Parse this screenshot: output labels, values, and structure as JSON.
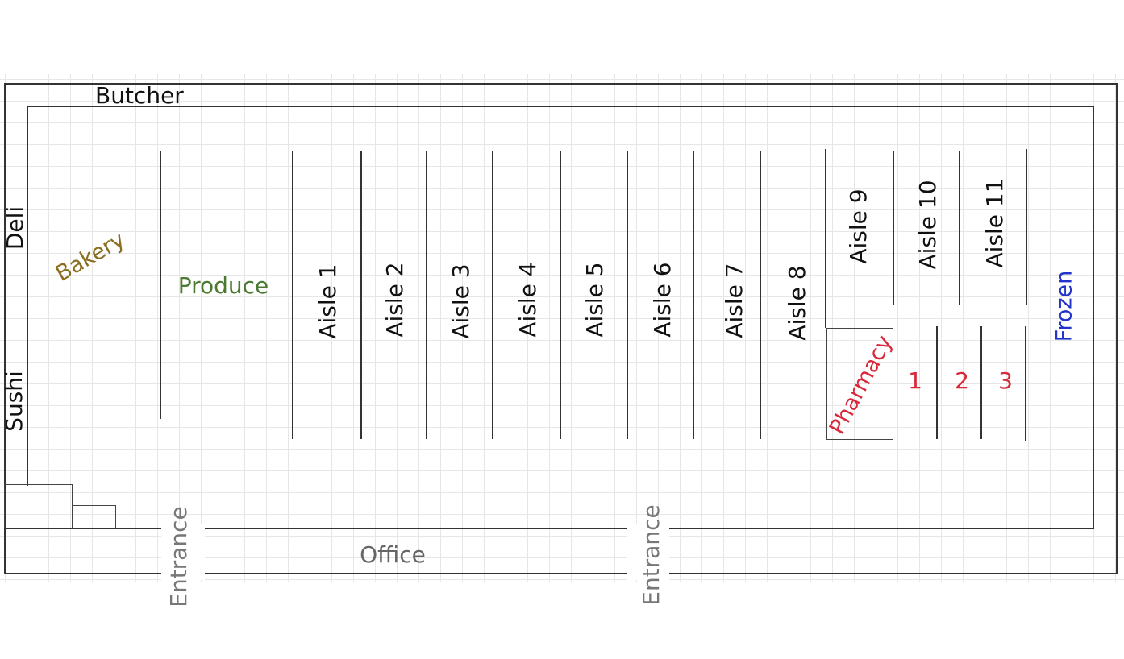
{
  "map": {
    "labels": {
      "butcher": "Butcher",
      "deli": "Deli",
      "sushi": "Sushi",
      "bakery": "Bakery",
      "produce": "Produce",
      "frozen": "Frozen",
      "pharmacy": "Pharmacy",
      "office": "Office",
      "entrance_left": "Entrance",
      "entrance_right": "Entrance"
    },
    "aisles": [
      "Aisle 1",
      "Aisle 2",
      "Aisle 3",
      "Aisle 4",
      "Aisle 5",
      "Aisle 6",
      "Aisle 7",
      "Aisle 8",
      "Aisle 9",
      "Aisle 10",
      "Aisle 11"
    ],
    "pharmacy_counters": [
      "1",
      "2",
      "3"
    ],
    "colors": {
      "bakery": "#8a6d1e",
      "produce": "#4a7a32",
      "frozen": "#2233cc",
      "pharmacy": "#d9283a",
      "office": "#666666",
      "entrance": "#777777",
      "walls": "#333333"
    }
  }
}
